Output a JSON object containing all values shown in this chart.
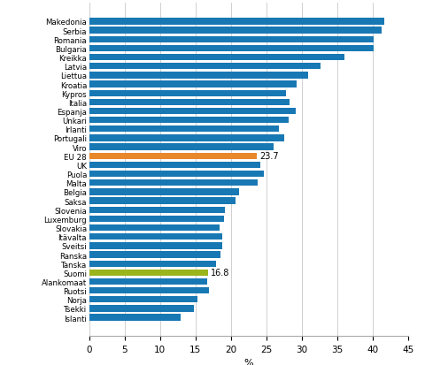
{
  "countries": [
    "Makedonia",
    "Serbia",
    "Romania",
    "Bulgaria",
    "Kreikka",
    "Latvia",
    "Liettua",
    "Kroatia",
    "Kypros",
    "Italia",
    "Espanja",
    "Unkari",
    "Irlanti",
    "Portugali",
    "Viro",
    "EU 28",
    "UK",
    "Puola",
    "Malta",
    "Belgia",
    "Saksa",
    "Slovenia",
    "Luxemburg",
    "Slovakia",
    "Itävalta",
    "Sveitsi",
    "Ranska",
    "Tanska",
    "Suomi",
    "Alankomaat",
    "Ruotsi",
    "Norja",
    "Tsekki",
    "Islanti"
  ],
  "values": [
    41.6,
    41.3,
    40.2,
    40.1,
    36.0,
    32.7,
    30.9,
    29.3,
    27.8,
    28.3,
    29.2,
    28.2,
    26.8,
    27.5,
    26.0,
    23.7,
    24.1,
    24.7,
    23.8,
    21.2,
    20.6,
    19.2,
    19.0,
    18.4,
    18.8,
    18.8,
    18.5,
    17.9,
    16.8,
    16.7,
    16.9,
    15.3,
    14.8,
    12.9
  ],
  "bar_colors": [
    "#1878b4",
    "#1878b4",
    "#1878b4",
    "#1878b4",
    "#1878b4",
    "#1878b4",
    "#1878b4",
    "#1878b4",
    "#1878b4",
    "#1878b4",
    "#1878b4",
    "#1878b4",
    "#1878b4",
    "#1878b4",
    "#1878b4",
    "#e8882a",
    "#1878b4",
    "#1878b4",
    "#1878b4",
    "#1878b4",
    "#1878b4",
    "#1878b4",
    "#1878b4",
    "#1878b4",
    "#1878b4",
    "#1878b4",
    "#1878b4",
    "#1878b4",
    "#9ab41a",
    "#1878b4",
    "#1878b4",
    "#1878b4",
    "#1878b4",
    "#1878b4"
  ],
  "annotations": {
    "EU 28": "23.7",
    "Suomi": "16.8"
  },
  "xlabel": "%",
  "xlim": [
    0,
    45
  ],
  "xticks": [
    0,
    5,
    10,
    15,
    20,
    25,
    30,
    35,
    40,
    45
  ],
  "bg_color": "#ffffff",
  "grid_color": "#d0d0d0"
}
